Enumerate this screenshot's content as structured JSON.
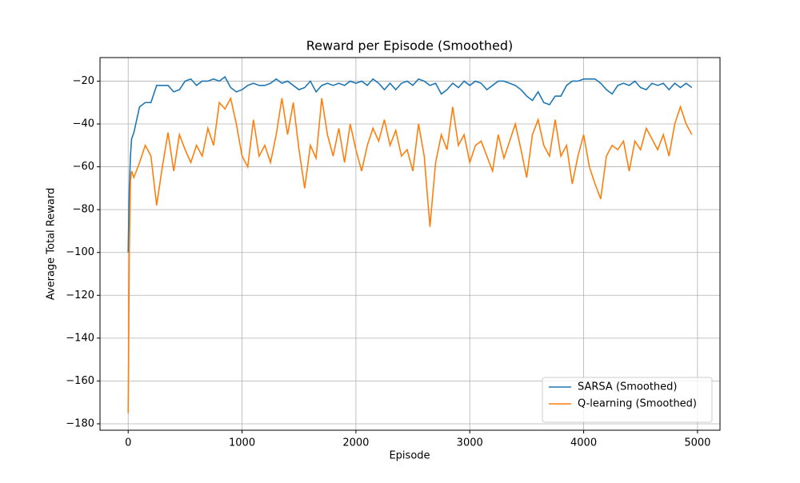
{
  "chart_data": {
    "type": "line",
    "title": "Reward per Episode (Smoothed)",
    "x_label": "Episode",
    "y_label": "Average Total Reward",
    "xlim": [
      -247.5,
      5197.5
    ],
    "ylim": [
      -183,
      -9
    ],
    "xticks": [
      0,
      1000,
      2000,
      3000,
      4000,
      5000
    ],
    "yticks": [
      {
        "value": -180,
        "label": "−180"
      },
      {
        "value": -160,
        "label": "−160"
      },
      {
        "value": -140,
        "label": "−140"
      },
      {
        "value": -120,
        "label": "−120"
      },
      {
        "value": -100,
        "label": "−100"
      },
      {
        "value": -80,
        "label": "−80"
      },
      {
        "value": -60,
        "label": "−60"
      },
      {
        "value": -40,
        "label": "−40"
      },
      {
        "value": -20,
        "label": "−20"
      }
    ],
    "grid": true,
    "legend": "lower right",
    "x": [
      0,
      10,
      20,
      30,
      50,
      100,
      150,
      200,
      250,
      300,
      350,
      400,
      450,
      500,
      550,
      600,
      650,
      700,
      750,
      800,
      850,
      900,
      950,
      1000,
      1050,
      1100,
      1150,
      1200,
      1250,
      1300,
      1350,
      1400,
      1450,
      1500,
      1550,
      1600,
      1650,
      1700,
      1750,
      1800,
      1850,
      1900,
      1950,
      2000,
      2050,
      2100,
      2150,
      2200,
      2250,
      2300,
      2350,
      2400,
      2450,
      2500,
      2550,
      2600,
      2650,
      2700,
      2750,
      2800,
      2850,
      2900,
      2950,
      3000,
      3050,
      3100,
      3150,
      3200,
      3250,
      3300,
      3350,
      3400,
      3450,
      3500,
      3550,
      3600,
      3650,
      3700,
      3750,
      3800,
      3850,
      3900,
      3950,
      4000,
      4050,
      4100,
      4150,
      4200,
      4250,
      4300,
      4350,
      4400,
      4450,
      4500,
      4550,
      4600,
      4650,
      4700,
      4750,
      4800,
      4850,
      4900,
      4950
    ],
    "series": [
      {
        "name": "SARSA (Smoothed)",
        "color": "#1f77b4",
        "values": [
          -100,
          -70,
          -55,
          -47,
          -44,
          -32,
          -30,
          -30,
          -22,
          -22,
          -22,
          -25,
          -24,
          -20,
          -19,
          -22,
          -20,
          -20,
          -19,
          -20,
          -18,
          -23,
          -25,
          -24,
          -22,
          -21,
          -22,
          -22,
          -21,
          -19,
          -21,
          -20,
          -22,
          -24,
          -23,
          -20,
          -25,
          -22,
          -21,
          -22,
          -21,
          -22,
          -20,
          -21,
          -20,
          -22,
          -19,
          -21,
          -24,
          -21,
          -24,
          -21,
          -20,
          -22,
          -19,
          -20,
          -22,
          -21,
          -26,
          -24,
          -21,
          -23,
          -20,
          -22,
          -20,
          -21,
          -24,
          -22,
          -20,
          -20,
          -21,
          -22,
          -24,
          -27,
          -29,
          -25,
          -30,
          -31,
          -27,
          -27,
          -22,
          -20,
          -20,
          -19,
          -19,
          -19,
          -21,
          -24,
          -26,
          -22,
          -21,
          -22,
          -20,
          -23,
          -24,
          -21,
          -22,
          -21,
          -24,
          -21,
          -23,
          -21,
          -23
        ]
      },
      {
        "name": "Q-learning (Smoothed)",
        "color": "#ff7f0e",
        "values": [
          -175,
          -100,
          -67,
          -62,
          -65,
          -58,
          -50,
          -55,
          -78,
          -60,
          -44,
          -62,
          -45,
          -52,
          -58,
          -50,
          -55,
          -42,
          -50,
          -30,
          -33,
          -28,
          -40,
          -55,
          -60,
          -38,
          -55,
          -50,
          -58,
          -45,
          -28,
          -45,
          -30,
          -52,
          -70,
          -50,
          -56,
          -28,
          -45,
          -55,
          -42,
          -58,
          -40,
          -52,
          -62,
          -50,
          -42,
          -48,
          -38,
          -50,
          -43,
          -55,
          -52,
          -62,
          -40,
          -55,
          -88,
          -58,
          -45,
          -52,
          -32,
          -50,
          -45,
          -58,
          -50,
          -48,
          -55,
          -62,
          -45,
          -56,
          -48,
          -40,
          -52,
          -65,
          -45,
          -38,
          -50,
          -55,
          -38,
          -55,
          -50,
          -68,
          -55,
          -45,
          -60,
          -68,
          -75,
          -55,
          -50,
          -52,
          -48,
          -62,
          -48,
          -52,
          -42,
          -47,
          -52,
          -45,
          -55,
          -40,
          -32,
          -40,
          -45
        ]
      }
    ]
  }
}
